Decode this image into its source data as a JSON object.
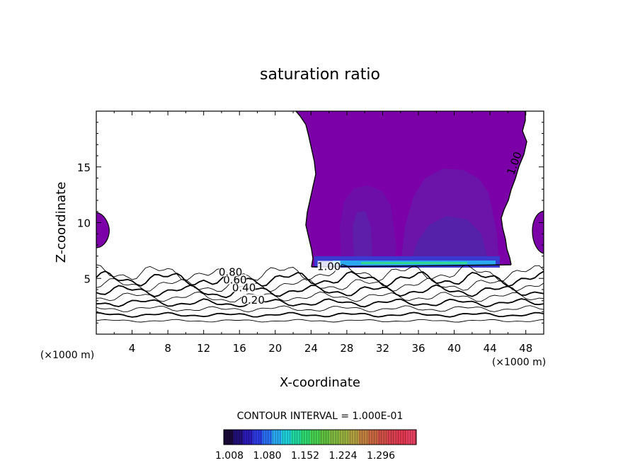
{
  "chart_data": {
    "type": "contour",
    "title": "saturation ratio",
    "xlabel": "X-coordinate",
    "ylabel": "Z-coordinate",
    "x_unit_left": "(×1000 m)",
    "x_unit_right": "(×1000 m)",
    "xlim": [
      0,
      50
    ],
    "ylim": [
      0,
      20
    ],
    "x_ticks": [
      4,
      8,
      12,
      16,
      20,
      24,
      28,
      32,
      36,
      40,
      44,
      48
    ],
    "y_ticks": [
      5,
      10,
      15
    ],
    "contour_levels": [
      0.1,
      0.2,
      0.3,
      0.4,
      0.5,
      0.6,
      0.7,
      0.8,
      0.9,
      1.0
    ],
    "contour_labels": [
      {
        "text": "0.20",
        "x": 17.5,
        "z": 3.0
      },
      {
        "text": "0.40",
        "x": 16.5,
        "z": 4.1
      },
      {
        "text": "0.60",
        "x": 15.5,
        "z": 4.8
      },
      {
        "text": "0.80",
        "x": 15.0,
        "z": 5.5
      },
      {
        "text": "1.00",
        "x": 46.8,
        "z": 15.3
      },
      {
        "text": "1.00",
        "x": 26.0,
        "z": 6.0
      }
    ],
    "contour_interval_label": "CONTOUR INTERVAL = 1.000E-01",
    "colorbar": {
      "tick_labels": [
        "1.008",
        "1.080",
        "1.152",
        "1.224",
        "1.296"
      ],
      "colors": [
        "#1a0a3a",
        "#22107a",
        "#2a1ab8",
        "#2c3ae0",
        "#2a6ef0",
        "#2aa8f0",
        "#20d0d8",
        "#20d8a0",
        "#30d870",
        "#48d050",
        "#60c040",
        "#80b840",
        "#98b040",
        "#b0a040",
        "#c08040",
        "#c86840",
        "#d05048",
        "#d84050",
        "#e03850",
        "#e84060"
      ]
    },
    "fill_color_supersaturated": "#7b00a8"
  }
}
